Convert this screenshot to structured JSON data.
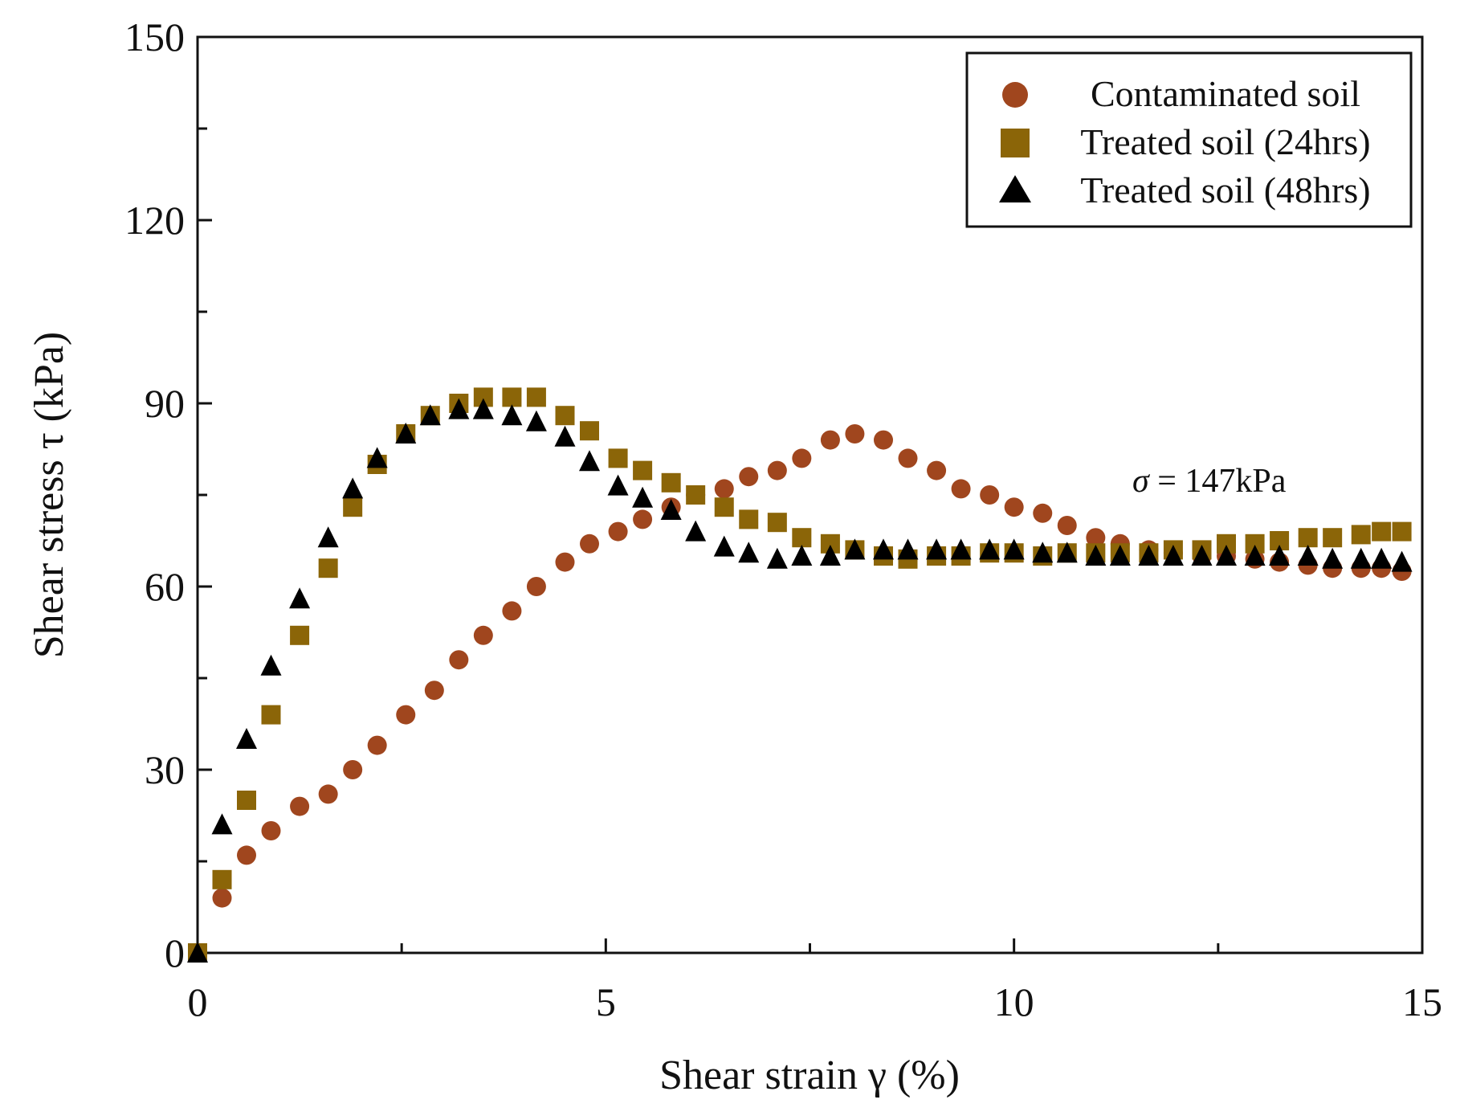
{
  "chart_data": {
    "type": "scatter",
    "title": "",
    "xlabel": "Shear strain γ (%)",
    "ylabel": "Shear stress τ (kPa)",
    "xlim": [
      0,
      15
    ],
    "ylim": [
      0,
      150
    ],
    "xticks": [
      "0",
      "5",
      "10",
      "15"
    ],
    "yticks": [
      "0",
      "30",
      "60",
      "90",
      "120",
      "150"
    ],
    "grid": false,
    "legend_position": "top-right",
    "annotation": {
      "symbol": "σ",
      "text": " = 147kPa",
      "x": 13.0,
      "y": 77
    },
    "series": [
      {
        "name": "Contaminated soil",
        "marker": "circle",
        "color": "#A0461E",
        "x": [
          0,
          0.3,
          0.6,
          0.9,
          1.25,
          1.6,
          1.9,
          2.2,
          2.55,
          2.9,
          3.2,
          3.5,
          3.85,
          4.15,
          4.5,
          4.8,
          5.15,
          5.45,
          5.8,
          6.1,
          6.45,
          6.75,
          7.1,
          7.4,
          7.75,
          8.05,
          8.4,
          8.7,
          9.05,
          9.35,
          9.7,
          10.0,
          10.35,
          10.65,
          11.0,
          11.3,
          11.65,
          11.95,
          12.3,
          12.6,
          12.95,
          13.25,
          13.6,
          13.9,
          14.25,
          14.5,
          14.75
        ],
        "y": [
          0,
          9,
          16,
          20,
          24,
          26,
          30,
          34,
          39,
          43,
          48,
          52,
          56,
          60,
          64,
          67,
          69,
          71,
          73,
          75,
          76,
          78,
          79,
          81,
          84,
          85,
          84,
          81,
          79,
          76,
          75,
          73,
          72,
          70,
          68,
          67,
          66,
          65.5,
          65,
          65,
          64.5,
          64,
          63.5,
          63,
          63,
          63,
          62.5
        ]
      },
      {
        "name": "Treated soil (24hrs)",
        "marker": "square",
        "color": "#8B6508",
        "x": [
          0,
          0.3,
          0.6,
          0.9,
          1.25,
          1.6,
          1.9,
          2.2,
          2.55,
          2.85,
          3.2,
          3.5,
          3.85,
          4.15,
          4.5,
          4.8,
          5.15,
          5.45,
          5.8,
          6.1,
          6.45,
          6.75,
          7.1,
          7.4,
          7.75,
          8.05,
          8.4,
          8.7,
          9.05,
          9.35,
          9.7,
          10.0,
          10.35,
          10.65,
          11.0,
          11.3,
          11.65,
          11.95,
          12.3,
          12.6,
          12.95,
          13.25,
          13.6,
          13.9,
          14.25,
          14.5,
          14.75
        ],
        "y": [
          0,
          12,
          25,
          39,
          52,
          63,
          73,
          80,
          85,
          88,
          90,
          91,
          91,
          91,
          88,
          85.5,
          81,
          79,
          77,
          75,
          73,
          71,
          70.5,
          68,
          67,
          66,
          65,
          64.5,
          65,
          65,
          65.5,
          65.5,
          65,
          65.5,
          65.5,
          65.5,
          65.5,
          66,
          66,
          67,
          67,
          67.5,
          68,
          68,
          68.5,
          69,
          69
        ]
      },
      {
        "name": "Treated soil (48hrs)",
        "marker": "triangle",
        "color": "#000000",
        "x": [
          0,
          0.3,
          0.6,
          0.9,
          1.25,
          1.6,
          1.9,
          2.2,
          2.55,
          2.85,
          3.2,
          3.5,
          3.85,
          4.15,
          4.5,
          4.8,
          5.15,
          5.45,
          5.8,
          6.1,
          6.45,
          6.75,
          7.1,
          7.4,
          7.75,
          8.05,
          8.4,
          8.7,
          9.05,
          9.35,
          9.7,
          10.0,
          10.35,
          10.65,
          11.0,
          11.3,
          11.65,
          11.95,
          12.3,
          12.6,
          12.95,
          13.25,
          13.6,
          13.9,
          14.25,
          14.5,
          14.75
        ],
        "y": [
          0,
          21,
          35,
          47,
          58,
          68,
          76,
          81,
          85,
          88,
          89,
          89,
          88,
          87,
          84.5,
          80.5,
          76.5,
          74.5,
          72.5,
          69,
          66.5,
          65.5,
          64.5,
          65,
          65,
          66,
          66,
          66,
          66,
          66,
          66,
          66,
          65.5,
          65.5,
          65,
          65,
          65,
          65,
          65,
          65,
          65,
          65,
          65,
          64.5,
          64.5,
          64.5,
          64
        ]
      }
    ]
  }
}
